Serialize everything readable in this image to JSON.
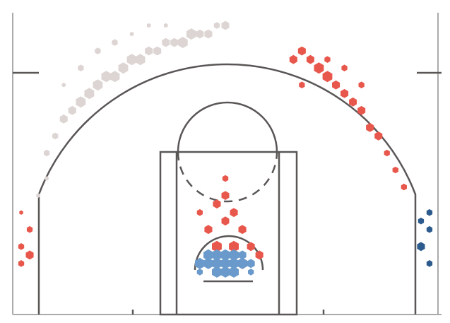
{
  "chart_data": {
    "type": "hexbin",
    "xlim": [
      -25,
      25
    ],
    "ylim": [
      0,
      35.5
    ],
    "series": [
      {
        "color": "#ddd5d3",
        "x": [
          -21,
          -20,
          -19,
          -18,
          -17,
          -16,
          -15,
          -14,
          -13,
          -12,
          -11,
          -10,
          -9,
          -8,
          -7,
          -6,
          -5,
          -4,
          -3,
          -2,
          -1,
          0,
          -17,
          -15,
          -13,
          -11,
          -9,
          -7,
          -19,
          -21,
          -22
        ],
        "values": [
          19,
          21,
          23,
          24,
          25,
          26,
          27,
          28,
          28,
          29,
          30,
          30,
          31,
          31,
          32,
          32,
          32,
          33,
          33,
          33,
          34,
          34,
          29,
          31,
          32,
          33,
          34,
          34,
          27,
          16,
          14
        ],
        "sizes": [
          3,
          3,
          4,
          4,
          5,
          5,
          5,
          5,
          5,
          5,
          5,
          5,
          4,
          4,
          4,
          4,
          5,
          5,
          4,
          4,
          3,
          4,
          3,
          3,
          3,
          2,
          2,
          2,
          2,
          2,
          2
        ]
      },
      {
        "color": "#e8574c",
        "x": [
          8,
          9,
          10,
          11,
          12,
          13,
          14,
          15,
          16,
          17,
          18,
          19,
          20,
          21,
          9,
          12,
          14,
          16,
          -24,
          -24,
          -23,
          -24,
          -23,
          -1,
          0,
          1,
          2,
          -2,
          0,
          1,
          -1,
          2,
          3,
          -3,
          0,
          4
        ],
        "values": [
          30,
          31,
          30,
          29,
          28,
          27,
          26,
          25,
          24,
          22,
          21,
          19,
          17,
          15,
          27,
          30,
          29,
          27,
          6,
          8,
          10,
          12,
          7,
          13,
          14,
          12,
          10,
          10,
          16,
          8,
          8,
          6,
          8,
          12,
          11,
          7
        ],
        "sizes": [
          4,
          4,
          4,
          5,
          5,
          4,
          4,
          4,
          4,
          4,
          4,
          3,
          3,
          3,
          3,
          3,
          3,
          3,
          3,
          3,
          3,
          2,
          4,
          4,
          4,
          4,
          4,
          4,
          3,
          5,
          5,
          5,
          4,
          3,
          4,
          4
        ]
      },
      {
        "color": "#6a9acb",
        "x": [
          -3,
          -2,
          -1,
          0,
          1,
          2,
          3,
          -2,
          -1,
          0,
          1,
          2,
          -1,
          0,
          1,
          -3,
          3
        ],
        "values": [
          6,
          6,
          6,
          6,
          6,
          6,
          6,
          7,
          7,
          7,
          7,
          7,
          5,
          5,
          5,
          5,
          5
        ],
        "sizes": [
          5,
          5,
          5,
          5,
          5,
          5,
          4,
          5,
          5,
          5,
          5,
          4,
          5,
          5,
          5,
          3,
          3
        ]
      },
      {
        "color": "#2d5b8e",
        "x": [
          24,
          23,
          24,
          23,
          24
        ],
        "values": [
          6,
          8,
          10,
          11,
          12
        ],
        "sizes": [
          3,
          4,
          3,
          3,
          3
        ]
      }
    ]
  }
}
